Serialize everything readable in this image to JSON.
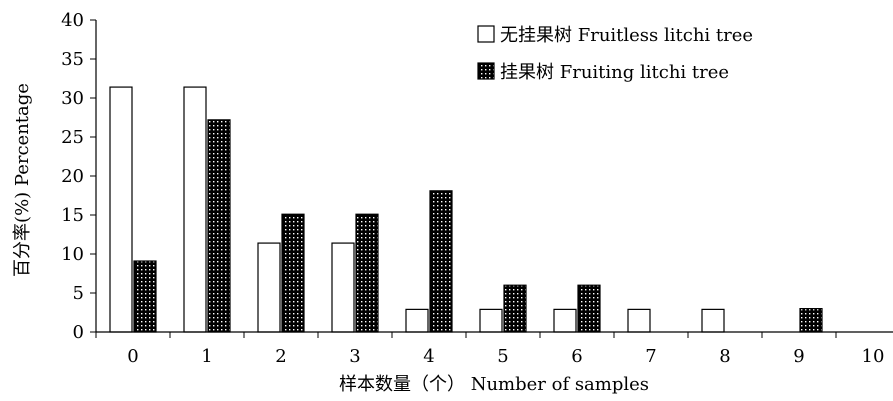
{
  "chart_data": {
    "type": "bar",
    "xlabel": "样本数量（个） Number of samples",
    "ylabel": "百分率(%) Percentage",
    "categories": [
      "0",
      "1",
      "2",
      "3",
      "4",
      "5",
      "6",
      "7",
      "8",
      "9",
      "10"
    ],
    "ylim": [
      0,
      40
    ],
    "yticks": [
      "0",
      "5",
      "10",
      "15",
      "20",
      "25",
      "30",
      "35",
      "40"
    ],
    "grid": false,
    "legend_position": "top-right",
    "series": [
      {
        "name": "无挂果树 Fruitless litchi tree",
        "pattern": "hollow",
        "values": [
          31.4,
          31.4,
          11.4,
          11.4,
          2.9,
          2.9,
          2.9,
          2.9,
          2.9,
          0,
          0
        ]
      },
      {
        "name": "挂果树 Fruiting litchi tree",
        "pattern": "dotted",
        "values": [
          9.1,
          27.2,
          15.1,
          15.1,
          18.1,
          6.0,
          6.0,
          0,
          0,
          3.0,
          0
        ]
      }
    ],
    "colors": {
      "bar_fill_hollow": "#ffffff",
      "bar_fill_dotted": "#000000",
      "stroke": "#000000"
    }
  }
}
